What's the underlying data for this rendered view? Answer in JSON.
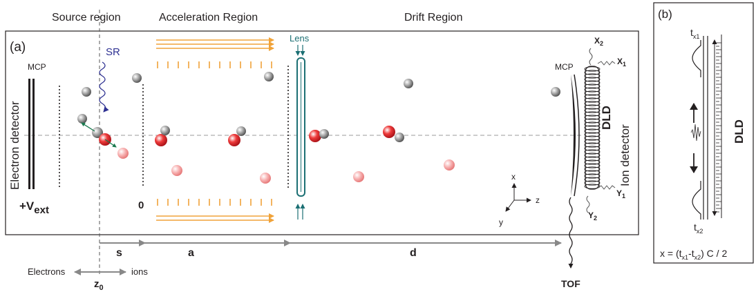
{
  "regions": {
    "source": "Source region",
    "acceleration": "Acceleration Region",
    "drift": "Drift  Region"
  },
  "panels": {
    "a": "(a)",
    "b": "(b)"
  },
  "labels": {
    "sr": "SR",
    "lens": "Lens",
    "mcp_left": "MCP",
    "mcp_right": "MCP",
    "electron_detector": "Electron detector",
    "ion_detector": "Ion detector",
    "dld_a": "DLD",
    "dld_b": "DLD",
    "vext_main": "+V",
    "vext_sub": "ext",
    "zero": "0",
    "tof": "TOF",
    "x2": "X",
    "x2_sub": "2",
    "x1": "X",
    "x1_sub": "1",
    "y1": "Y",
    "y1_sub": "1",
    "y2": "Y",
    "y2_sub": "2"
  },
  "axes": {
    "x": "x",
    "y": "y",
    "z": "z"
  },
  "dimensions": {
    "s": "s",
    "a": "a",
    "d": "d",
    "z0": "z",
    "z0_sub": "0",
    "electrons": "Electrons",
    "ions": "ions"
  },
  "panel_b": {
    "tx1": "t",
    "tx1_sub": "x1",
    "tx2": "t",
    "tx2_sub": "x2",
    "formula_a": "x = (t",
    "formula_sub1": "x1",
    "formula_b": "-t",
    "formula_sub2": "x2",
    "formula_c": ") C / 2"
  },
  "colors": {
    "orange": "#f0a238",
    "teal": "#1b6f73",
    "blue": "#2e3192",
    "gray": "#808080",
    "red": "#e3262b",
    "pink": "#f4a3a3"
  }
}
